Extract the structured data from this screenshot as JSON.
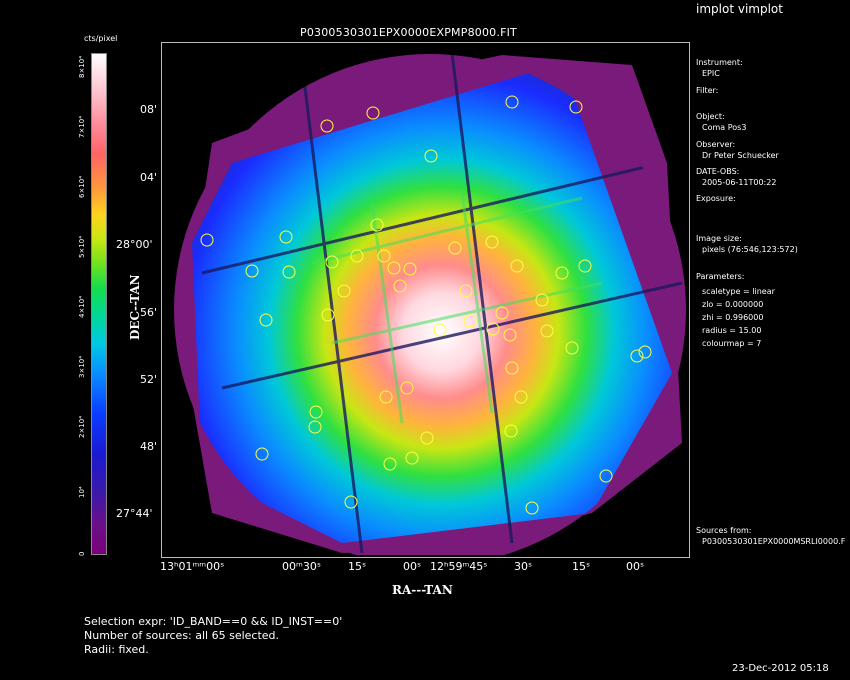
{
  "app_title": "implot vimplot",
  "plot_title": "P0300530301EPX0000EXPMP8000.FIT",
  "colorbar": {
    "unit": "cts/pixel",
    "ticks": [
      "0",
      "10⁴",
      "2×10⁴",
      "3×10⁴",
      "4×10⁴",
      "5×10⁴",
      "6×10⁴",
      "7×10⁴",
      "8×10⁴"
    ]
  },
  "axes": {
    "ylabel": "DEC--TAN",
    "xlabel": "RA---TAN",
    "yticks": [
      "08'",
      "04'",
      "28°00'",
      "56'",
      "52'",
      "48'",
      "27°44'"
    ],
    "xticks": [
      "13ʰ01ᵐᵐ00ˢ",
      "00ᵐ30ˢ",
      "15ˢ",
      "00ˢ",
      "12ʰ59ᵐ45ˢ",
      "30ˢ",
      "15ˢ",
      "00ˢ"
    ]
  },
  "info": {
    "instrument_label": "Instrument:",
    "instrument_value": "EPIC",
    "filter_label": "Filter:",
    "object_label": "Object:",
    "object_value": "Coma Pos3",
    "observer_label": "Observer:",
    "observer_value": "Dr Peter Schuecker",
    "date_label": "DATE-OBS:",
    "date_value": "2005-06-11T00:22",
    "exposure_label": "Exposure:",
    "image_size_label": "Image size:",
    "image_size_value": "pixels (76:546,123:572)",
    "parameters_label": "Parameters:",
    "param_scaletype": "scaletype = linear",
    "param_zlo": "zlo = 0.000000",
    "param_zhi": "zhi = 0.996000",
    "param_radius": "radius = 15.00",
    "param_colourmap": "colourmap = 7",
    "sources_label": "Sources from:",
    "sources_value": "P0300530301EPX0000MSRLI0000.F"
  },
  "footer": {
    "selection": "Selection expr: 'ID_BAND==0 && ID_INST==0'",
    "num_sources": "Number of sources: all 65 selected.",
    "radii": "Radii: fixed."
  },
  "timestamp": "23-Dec-2012 05:18",
  "image_colors": {
    "background_purple": "#7a1a7a",
    "deep_blue": "#1a2cff",
    "cyan": "#00c8ff",
    "green": "#30e040",
    "core_white": "#ffffff",
    "source_circle": "#ffff40"
  }
}
